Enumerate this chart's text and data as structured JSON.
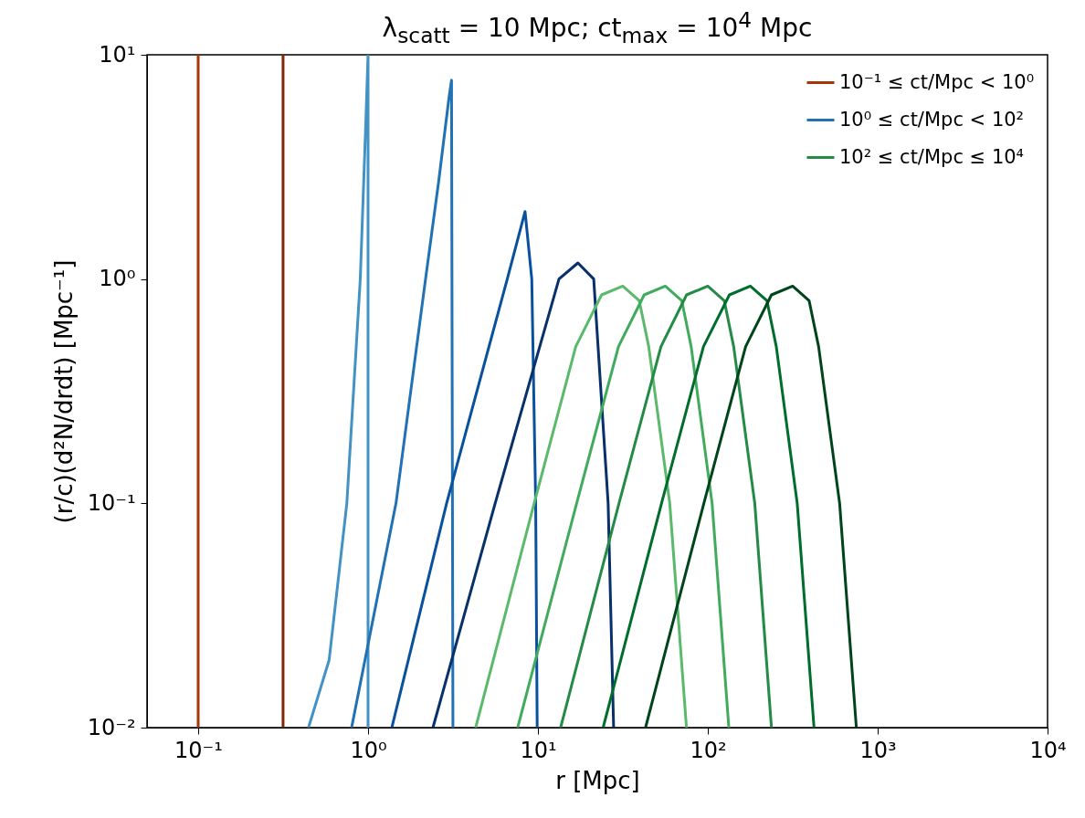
{
  "chart_data": {
    "type": "line",
    "title": "λ$_{scatt}$ = 10 Mpc; ct$_{max}$ = 10$^{4}$ Mpc",
    "xlabel": "r [Mpc]",
    "ylabel": "(r/c)(d²N/drdt) [Mpc⁻¹]",
    "log": "xy",
    "legend": "top right",
    "xlim": [
      0.05,
      10000
    ],
    "ylim": [
      0.01,
      10
    ],
    "xticks": [
      {
        "value": 0.1,
        "label": "10⁻¹"
      },
      {
        "value": 1,
        "label": "10⁰"
      },
      {
        "value": 10,
        "label": "10¹"
      },
      {
        "value": 100,
        "label": "10²"
      },
      {
        "value": 1000,
        "label": "10³"
      },
      {
        "value": 10000,
        "label": "10⁴"
      }
    ],
    "yticks": [
      {
        "value": 0.01,
        "label": "10⁻²"
      },
      {
        "value": 0.1,
        "label": "10⁻¹"
      },
      {
        "value": 1,
        "label": "10⁰"
      },
      {
        "value": 10,
        "label": "10¹"
      }
    ],
    "series": [
      {
        "name": "10⁻¹ ≤ ct/Mpc < 10⁰",
        "color": "#a63603",
        "x": [
          0.1,
          0.1
        ],
        "values": [
          0.01,
          10
        ]
      },
      {
        "color": "#7f2704",
        "x": [
          0.316,
          0.316
        ],
        "values": [
          0.01,
          10
        ]
      },
      {
        "color": "#4292c6",
        "x": [
          0.446,
          0.59,
          0.75,
          0.9,
          0.97,
          1.0,
          1.0
        ],
        "values": [
          0.01,
          0.02,
          0.1,
          1,
          5,
          10,
          0.01
        ]
      },
      {
        "name": "10⁰ ≤ ct/Mpc < 10²",
        "color": "#2171b5",
        "x": [
          0.8,
          1.46,
          2.18,
          2.6,
          3.0,
          3.1,
          3.16
        ],
        "values": [
          0.01,
          0.1,
          1,
          2.7,
          6.5,
          7.7,
          0.01
        ]
      },
      {
        "color": "#08519c",
        "x": [
          1.38,
          2.9,
          6.6,
          8.4,
          9.2,
          9.7,
          9.9
        ],
        "values": [
          0.01,
          0.1,
          1,
          2.0,
          1,
          0.1,
          0.01
        ]
      },
      {
        "color": "#08306b",
        "x": [
          2.41,
          5.6,
          13.3,
          17.2,
          21.3,
          25.9,
          27.9
        ],
        "values": [
          0.01,
          0.1,
          1,
          1.18,
          1,
          0.1,
          0.01
        ]
      },
      {
        "color": "#5ab96a",
        "x": [
          4.3,
          9.5,
          16.7,
          23.7,
          31.6,
          39.5,
          44.9,
          59.7,
          74.9
        ],
        "values": [
          0.01,
          0.1,
          0.5,
          0.85,
          0.93,
          0.8,
          0.5,
          0.1,
          0.01
        ]
      },
      {
        "color": "#41ab5d",
        "x": [
          7.6,
          16.9,
          29.8,
          42.2,
          56.2,
          70.3,
          79.8,
          106,
          133
        ],
        "values": [
          0.01,
          0.1,
          0.5,
          0.85,
          0.93,
          0.8,
          0.5,
          0.1,
          0.01
        ]
      },
      {
        "name": "10² ≤ ct/Mpc ≤ 10⁴",
        "color": "#238b45",
        "x": [
          13.6,
          30,
          53,
          75,
          100,
          125,
          142,
          189,
          237
        ],
        "values": [
          0.01,
          0.1,
          0.5,
          0.85,
          0.93,
          0.8,
          0.5,
          0.1,
          0.01
        ]
      },
      {
        "color": "#006d2c",
        "x": [
          24.2,
          53.4,
          94.3,
          134,
          178,
          223,
          253,
          336,
          422
        ],
        "values": [
          0.01,
          0.1,
          0.5,
          0.85,
          0.93,
          0.8,
          0.5,
          0.1,
          0.01
        ]
      },
      {
        "color": "#00441b",
        "x": [
          43,
          94.8,
          167,
          237,
          316,
          395,
          449,
          597,
          749
        ],
        "values": [
          0.01,
          0.1,
          0.5,
          0.85,
          0.93,
          0.8,
          0.5,
          0.1,
          0.01
        ]
      }
    ]
  }
}
